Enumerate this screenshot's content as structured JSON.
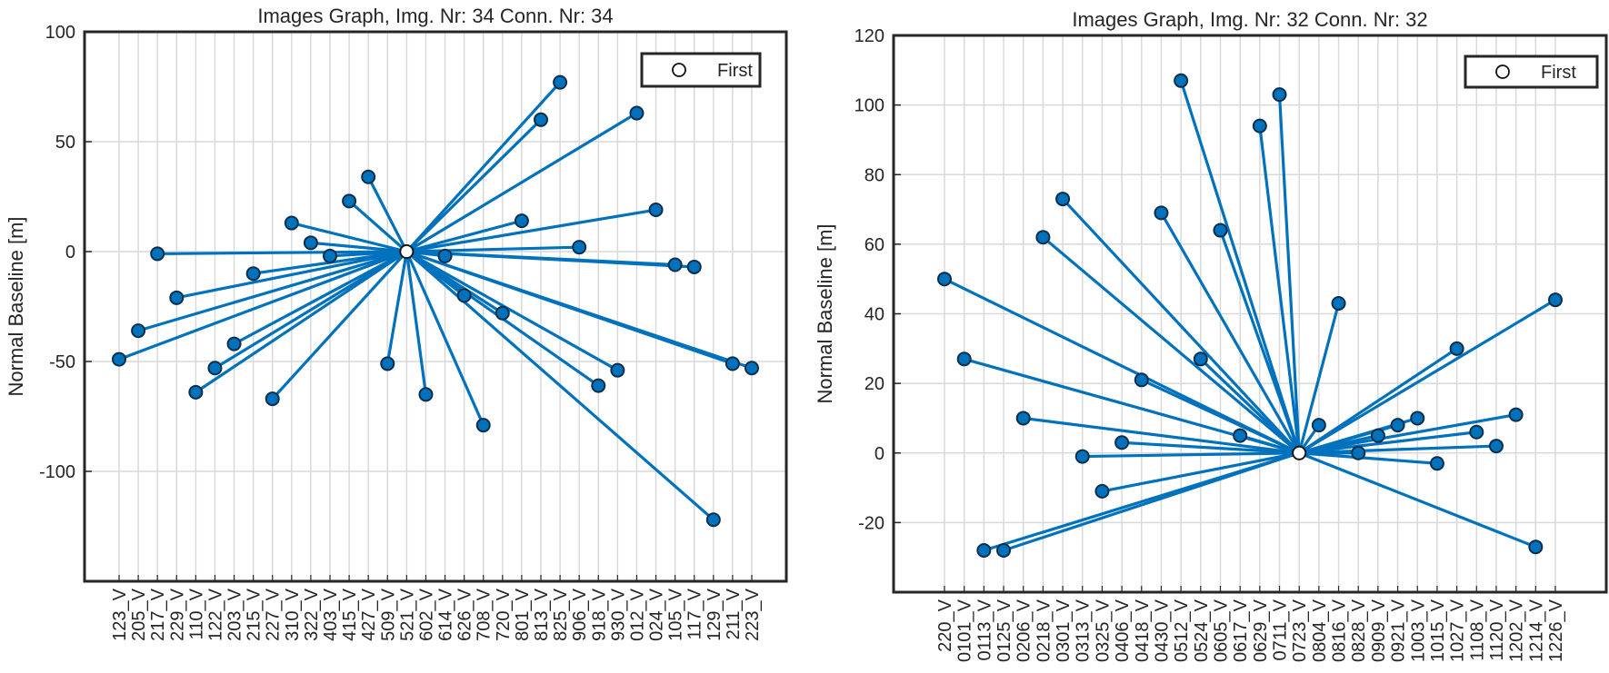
{
  "chart_data": [
    {
      "type": "scatter",
      "title": "Images Graph, Img. Nr: 34 Conn. Nr: 34",
      "xlabel": "",
      "ylabel": "Normal Baseline [m]",
      "ylim": [
        -150,
        100
      ],
      "yticks": [
        -100,
        -50,
        0,
        50,
        100
      ],
      "grid": true,
      "legend": {
        "entries": [
          "First"
        ],
        "placement": "top-right"
      },
      "categories": [
        "123_V",
        "205_V",
        "217_V",
        "229_V",
        "110_V",
        "122_V",
        "203_V",
        "215_V",
        "227_V",
        "310_V",
        "322_V",
        "403_V",
        "415_V",
        "427_V",
        "509_V",
        "521_V",
        "602_V",
        "614_V",
        "626_V",
        "708_V",
        "720_V",
        "801_V",
        "813_V",
        "825_V",
        "906_V",
        "918_V",
        "930_V",
        "012_V",
        "024_V",
        "105_V",
        "117_V",
        "129_V",
        "211_V",
        "223_V"
      ],
      "values": [
        -49,
        -36,
        -1,
        -21,
        -64,
        -53,
        -42,
        -10,
        -67,
        13,
        4,
        -2,
        23,
        34,
        -51,
        0,
        -65,
        -2,
        -20,
        -79,
        -28,
        14,
        60,
        77,
        2,
        -61,
        -54,
        63,
        19,
        -6,
        -7,
        -122,
        -51,
        -53
      ],
      "hub_index": 15,
      "series": [
        {
          "name": "First",
          "marker": "open-circle"
        },
        {
          "name": "Connections",
          "color": "#0072BD"
        }
      ]
    },
    {
      "type": "scatter",
      "title": "Images Graph, Img. Nr: 32 Conn. Nr: 32",
      "xlabel": "",
      "ylabel": "Normal Baseline [m]",
      "ylim": [
        -40,
        120
      ],
      "yticks": [
        -20,
        0,
        20,
        40,
        60,
        80,
        100,
        120
      ],
      "grid": true,
      "legend": {
        "entries": [
          "First"
        ],
        "placement": "top-right"
      },
      "categories": [
        "220_V",
        "0101_V",
        "0113_V",
        "0125_V",
        "0206_V",
        "0218_V",
        "0301_V",
        "0313_V",
        "0325_V",
        "0406_V",
        "0418_V",
        "0430_V",
        "0512_V",
        "0524_V",
        "0605_V",
        "0617_V",
        "0629_V",
        "0711_V",
        "0723_V",
        "0804_V",
        "0816_V",
        "0828_V",
        "0909_V",
        "0921_V",
        "1003_V",
        "1015_V",
        "1027_V",
        "1108_V",
        "1120_V",
        "1202_V",
        "1214_V",
        "1226_V"
      ],
      "values": [
        50,
        27,
        -28,
        -28,
        10,
        62,
        73,
        -1,
        -11,
        3,
        21,
        69,
        107,
        27,
        64,
        5,
        94,
        103,
        0,
        8,
        43,
        0,
        5,
        8,
        10,
        -3,
        30,
        6,
        2,
        11,
        -27,
        44
      ],
      "hub_index": 18,
      "series": [
        {
          "name": "First",
          "marker": "open-circle"
        },
        {
          "name": "Connections",
          "color": "#0072BD"
        }
      ]
    }
  ],
  "colors": {
    "series": "#0072BD",
    "marker_edge": "#0b2f4a",
    "grid": "#d9d9d9",
    "axis": "#262626"
  }
}
